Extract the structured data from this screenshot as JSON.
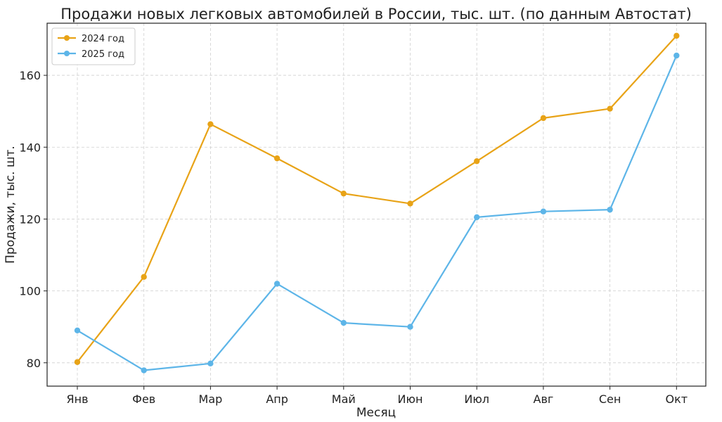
{
  "chart_data": {
    "type": "line",
    "title": "Продажи новых легковых автомобилей в России, тыс. шт. (по данным Автостат)",
    "xlabel": "Месяц",
    "ylabel": "Продажи, тыс. шт.",
    "categories": [
      "Янв",
      "Фев",
      "Мар",
      "Апр",
      "Май",
      "Июн",
      "Июл",
      "Авг",
      "Сен",
      "Окт"
    ],
    "ylim": [
      73.5,
      174.5
    ],
    "yticks": [
      80,
      100,
      120,
      140,
      160
    ],
    "grid": true,
    "legend_position": "top-left",
    "series": [
      {
        "name": "2024 год",
        "color": "#E8A317",
        "values": [
          80.2,
          103.9,
          146.4,
          136.9,
          127.1,
          124.3,
          136.1,
          148.1,
          150.7,
          171.0
        ]
      },
      {
        "name": "2025 год",
        "color": "#5DB5E8",
        "values": [
          89.0,
          77.9,
          79.8,
          102.0,
          91.1,
          90.0,
          120.5,
          122.1,
          122.6,
          165.5
        ]
      }
    ]
  }
}
